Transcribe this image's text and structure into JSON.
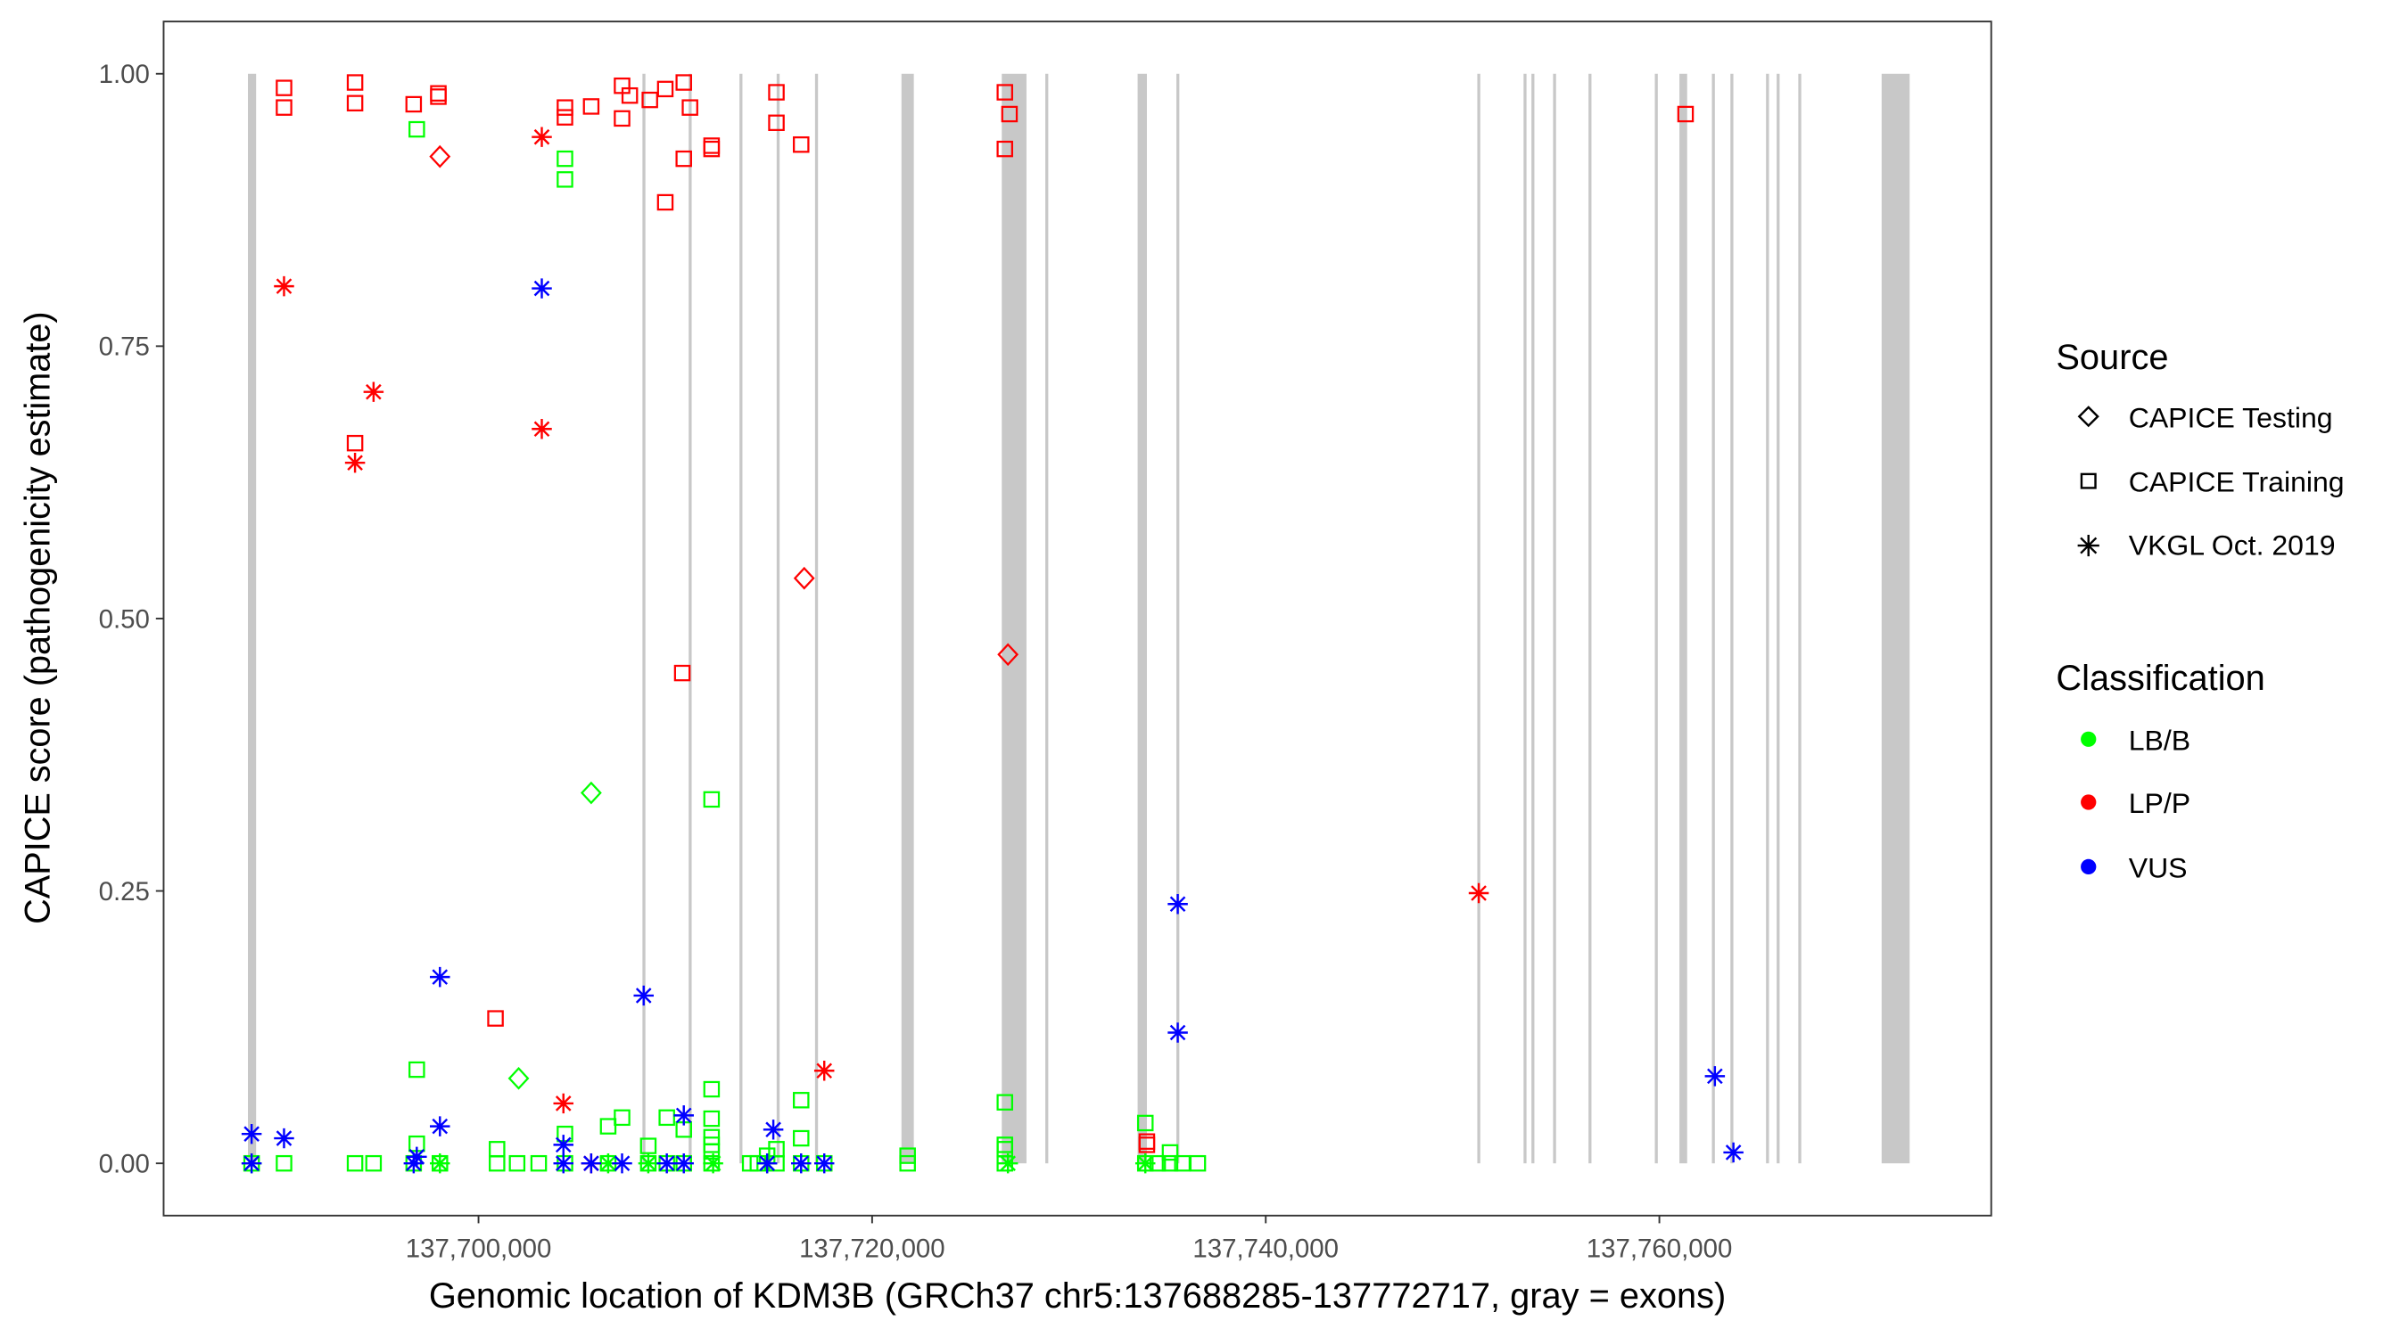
{
  "chart_data": {
    "type": "scatter",
    "xlabel": "Genomic location of KDM3B (GRCh37 chr5:137688285-137772717, gray = exons)",
    "ylabel": "CAPICE score (pathogenicity estimate)",
    "xlim": [
      137683700,
      137776500
    ],
    "ylim": [
      -0.047,
      1.05
    ],
    "x_ticks": [
      {
        "value": 137700000,
        "label": "137,700,000"
      },
      {
        "value": 137720000,
        "label": "137,720,000"
      },
      {
        "value": 137740000,
        "label": "137,740,000"
      },
      {
        "value": 137760000,
        "label": "137,760,000"
      }
    ],
    "y_ticks": [
      {
        "value": 0,
        "label": "0.00"
      },
      {
        "value": 0.25,
        "label": "0.25"
      },
      {
        "value": 0.5,
        "label": "0.50"
      },
      {
        "value": 0.75,
        "label": "0.75"
      },
      {
        "value": 1,
        "label": "1.00"
      }
    ],
    "grid": false,
    "exon_color": "#c8c8c8",
    "exons": [
      [
        137688285,
        137688700
      ],
      [
        137708330,
        137708480
      ],
      [
        137710680,
        137710830
      ],
      [
        137713260,
        137713410
      ],
      [
        137715150,
        137715300
      ],
      [
        137717100,
        137717250
      ],
      [
        137721490,
        137722118
      ],
      [
        137726588,
        137727843
      ],
      [
        137728800,
        137728950
      ],
      [
        137733490,
        137733961
      ],
      [
        137735460,
        137735610
      ],
      [
        137750750,
        137750900
      ],
      [
        137753100,
        137753250
      ],
      [
        137753500,
        137753650
      ],
      [
        137754600,
        137754750
      ],
      [
        137756400,
        137756550
      ],
      [
        137759770,
        137759920
      ],
      [
        137761020,
        137761412
      ],
      [
        137762670,
        137762820
      ],
      [
        137763610,
        137763760
      ],
      [
        137765420,
        137765570
      ],
      [
        137765960,
        137766110
      ],
      [
        137767060,
        137767210
      ],
      [
        137771294,
        137772717
      ]
    ],
    "legend": {
      "placement": "right",
      "source": {
        "title": "Source",
        "items": [
          {
            "key": "testing",
            "label": "CAPICE Testing",
            "shape": "diamond"
          },
          {
            "key": "training",
            "label": "CAPICE Training",
            "shape": "square"
          },
          {
            "key": "vkgl",
            "label": "VKGL Oct. 2019",
            "shape": "asterisk"
          }
        ]
      },
      "classification": {
        "title": "Classification",
        "items": [
          {
            "key": "LB/B",
            "label": "LB/B",
            "color": "#00ff00"
          },
          {
            "key": "LP/P",
            "label": "LP/P",
            "color": "#ff0000"
          },
          {
            "key": "VUS",
            "label": "VUS",
            "color": "#0000ff"
          }
        ]
      }
    },
    "points": [
      [
        137696863,
        0.949,
        "training",
        "LB/B"
      ],
      [
        137704392,
        0.922,
        "training",
        "LB/B"
      ],
      [
        137704392,
        0.903,
        "training",
        "LB/B"
      ],
      [
        137711843,
        0.334,
        "training",
        "LB/B"
      ],
      [
        137696863,
        0.086,
        "training",
        "LB/B"
      ],
      [
        137696863,
        0.018,
        "training",
        "LB/B"
      ],
      [
        137704392,
        0.027,
        "training",
        "LB/B"
      ],
      [
        137706588,
        0.034,
        "training",
        "LB/B"
      ],
      [
        137707294,
        0.042,
        "training",
        "LB/B"
      ],
      [
        137709568,
        0.042,
        "training",
        "LB/B"
      ],
      [
        137710431,
        0.031,
        "training",
        "LB/B"
      ],
      [
        137711843,
        0.068,
        "training",
        "LB/B"
      ],
      [
        137711843,
        0.041,
        "training",
        "LB/B"
      ],
      [
        137711843,
        0.024,
        "training",
        "LB/B"
      ],
      [
        137716392,
        0.058,
        "training",
        "LB/B"
      ],
      [
        137716392,
        0.023,
        "training",
        "LB/B"
      ],
      [
        137726745,
        0.056,
        "training",
        "LB/B"
      ],
      [
        137733882,
        0.037,
        "training",
        "LB/B"
      ],
      [
        137735137,
        0.01,
        "training",
        "LB/B"
      ],
      [
        137700941,
        0.013,
        "training",
        "LB/B"
      ],
      [
        137708627,
        0.016,
        "training",
        "LB/B"
      ],
      [
        137688471,
        0,
        "training",
        "LB/B"
      ],
      [
        137690118,
        0,
        "training",
        "LB/B"
      ],
      [
        137693726,
        0,
        "training",
        "LB/B"
      ],
      [
        137694667,
        0,
        "training",
        "LB/B"
      ],
      [
        137696706,
        0,
        "training",
        "LB/B"
      ],
      [
        137698039,
        0,
        "training",
        "LB/B"
      ],
      [
        137700941,
        0,
        "training",
        "LB/B"
      ],
      [
        137701961,
        0,
        "training",
        "LB/B"
      ],
      [
        137703059,
        0,
        "training",
        "LB/B"
      ],
      [
        137704392,
        0,
        "training",
        "LB/B"
      ],
      [
        137706588,
        0,
        "training",
        "LB/B"
      ],
      [
        137708627,
        0,
        "training",
        "LB/B"
      ],
      [
        137709568,
        0,
        "training",
        "LB/B"
      ],
      [
        137710431,
        0,
        "training",
        "LB/B"
      ],
      [
        137711843,
        0,
        "training",
        "LB/B"
      ],
      [
        137713804,
        0,
        "training",
        "LB/B"
      ],
      [
        137714196,
        0,
        "training",
        "LB/B"
      ],
      [
        137715137,
        0,
        "training",
        "LB/B"
      ],
      [
        137716392,
        0,
        "training",
        "LB/B"
      ],
      [
        137717568,
        0,
        "training",
        "LB/B"
      ],
      [
        137721804,
        0,
        "training",
        "LB/B"
      ],
      [
        137721804,
        0.007,
        "training",
        "LB/B"
      ],
      [
        137726745,
        0,
        "training",
        "LB/B"
      ],
      [
        137726745,
        0.013,
        "training",
        "LB/B"
      ],
      [
        137726745,
        0.017,
        "training",
        "LB/B"
      ],
      [
        137733882,
        0,
        "training",
        "LB/B"
      ],
      [
        137734509,
        0,
        "training",
        "LB/B"
      ],
      [
        137735137,
        0,
        "training",
        "LB/B"
      ],
      [
        137735764,
        0,
        "training",
        "LB/B"
      ],
      [
        137736548,
        0,
        "training",
        "LB/B"
      ],
      [
        137715137,
        0.013,
        "training",
        "LB/B"
      ],
      [
        137714666,
        0.007,
        "training",
        "LB/B"
      ],
      [
        137711843,
        0.017,
        "training",
        "LB/B"
      ],
      [
        137711843,
        0.011,
        "training",
        "LB/B"
      ],
      [
        137705725,
        0.34,
        "testing",
        "LB/B"
      ],
      [
        137702039,
        0.078,
        "testing",
        "LB/B"
      ],
      [
        137688471,
        0,
        "vkgl",
        "LB/B"
      ],
      [
        137698039,
        0,
        "vkgl",
        "LB/B"
      ],
      [
        137706588,
        0,
        "vkgl",
        "LB/B"
      ],
      [
        137708627,
        0,
        "vkgl",
        "LB/B"
      ],
      [
        137714666,
        0,
        "vkgl",
        "LB/B"
      ],
      [
        137726901,
        0,
        "vkgl",
        "LB/B"
      ],
      [
        137733882,
        0,
        "vkgl",
        "LB/B"
      ],
      [
        137711921,
        0,
        "vkgl",
        "LB/B"
      ],
      [
        137690118,
        0.987,
        "training",
        "LP/P"
      ],
      [
        137690118,
        0.969,
        "training",
        "LP/P"
      ],
      [
        137693726,
        0.992,
        "training",
        "LP/P"
      ],
      [
        137693726,
        0.973,
        "training",
        "LP/P"
      ],
      [
        137696706,
        0.972,
        "training",
        "LP/P"
      ],
      [
        137697961,
        0.982,
        "training",
        "LP/P"
      ],
      [
        137697961,
        0.979,
        "training",
        "LP/P"
      ],
      [
        137704392,
        0.969,
        "training",
        "LP/P"
      ],
      [
        137704392,
        0.96,
        "training",
        "LP/P"
      ],
      [
        137705725,
        0.97,
        "training",
        "LP/P"
      ],
      [
        137707294,
        0.989,
        "training",
        "LP/P"
      ],
      [
        137707294,
        0.959,
        "training",
        "LP/P"
      ],
      [
        137707686,
        0.98,
        "training",
        "LP/P"
      ],
      [
        137708706,
        0.976,
        "training",
        "LP/P"
      ],
      [
        137709490,
        0.986,
        "training",
        "LP/P"
      ],
      [
        137709490,
        0.882,
        "training",
        "LP/P"
      ],
      [
        137710431,
        0.992,
        "training",
        "LP/P"
      ],
      [
        137710745,
        0.969,
        "training",
        "LP/P"
      ],
      [
        137710431,
        0.922,
        "training",
        "LP/P"
      ],
      [
        137711843,
        0.934,
        "training",
        "LP/P"
      ],
      [
        137711843,
        0.931,
        "training",
        "LP/P"
      ],
      [
        137715137,
        0.983,
        "training",
        "LP/P"
      ],
      [
        137715137,
        0.955,
        "training",
        "LP/P"
      ],
      [
        137716392,
        0.935,
        "training",
        "LP/P"
      ],
      [
        137726745,
        0.983,
        "training",
        "LP/P"
      ],
      [
        137726980,
        0.963,
        "training",
        "LP/P"
      ],
      [
        137726745,
        0.931,
        "training",
        "LP/P"
      ],
      [
        137761332,
        0.963,
        "training",
        "LP/P"
      ],
      [
        137693726,
        0.661,
        "training",
        "LP/P"
      ],
      [
        137710353,
        0.45,
        "training",
        "LP/P"
      ],
      [
        137700863,
        0.133,
        "training",
        "LP/P"
      ],
      [
        137733960,
        0.02,
        "training",
        "LP/P"
      ],
      [
        137733960,
        0.017,
        "training",
        "LP/P"
      ],
      [
        137698039,
        0.924,
        "testing",
        "LP/P"
      ],
      [
        137716549,
        0.537,
        "testing",
        "LP/P"
      ],
      [
        137726901,
        0.467,
        "testing",
        "LP/P"
      ],
      [
        137690118,
        0.805,
        "vkgl",
        "LP/P"
      ],
      [
        137694667,
        0.708,
        "vkgl",
        "LP/P"
      ],
      [
        137693726,
        0.643,
        "vkgl",
        "LP/P"
      ],
      [
        137703216,
        0.942,
        "vkgl",
        "LP/P"
      ],
      [
        137703216,
        0.674,
        "vkgl",
        "LP/P"
      ],
      [
        137704314,
        0.055,
        "vkgl",
        "LP/P"
      ],
      [
        137717568,
        0.085,
        "vkgl",
        "LP/P"
      ],
      [
        137750823,
        0.248,
        "vkgl",
        "LP/P"
      ],
      [
        137705725,
        0,
        "vkgl",
        "LP/P"
      ],
      [
        137703216,
        0.803,
        "vkgl",
        "VUS"
      ],
      [
        137698039,
        0.171,
        "vkgl",
        "VUS"
      ],
      [
        137708392,
        0.154,
        "vkgl",
        "VUS"
      ],
      [
        137735529,
        0.238,
        "vkgl",
        "VUS"
      ],
      [
        137735529,
        0.12,
        "vkgl",
        "VUS"
      ],
      [
        137762822,
        0.08,
        "vkgl",
        "VUS"
      ],
      [
        137763764,
        0.01,
        "vkgl",
        "VUS"
      ],
      [
        137688471,
        0.027,
        "vkgl",
        "VUS"
      ],
      [
        137690118,
        0.023,
        "vkgl",
        "VUS"
      ],
      [
        137698039,
        0.034,
        "vkgl",
        "VUS"
      ],
      [
        137710431,
        0.044,
        "vkgl",
        "VUS"
      ],
      [
        137704314,
        0.017,
        "vkgl",
        "VUS"
      ],
      [
        137714980,
        0.031,
        "vkgl",
        "VUS"
      ],
      [
        137688471,
        0,
        "vkgl",
        "VUS"
      ],
      [
        137696706,
        0,
        "vkgl",
        "VUS"
      ],
      [
        137696863,
        0.006,
        "vkgl",
        "VUS"
      ],
      [
        137704314,
        0,
        "vkgl",
        "VUS"
      ],
      [
        137705725,
        0,
        "vkgl",
        "VUS"
      ],
      [
        137707294,
        0,
        "vkgl",
        "VUS"
      ],
      [
        137709568,
        0,
        "vkgl",
        "VUS"
      ],
      [
        137710431,
        0,
        "vkgl",
        "VUS"
      ],
      [
        137716392,
        0,
        "vkgl",
        "VUS"
      ],
      [
        137717568,
        0,
        "vkgl",
        "VUS"
      ],
      [
        137714666,
        0,
        "vkgl",
        "VUS"
      ]
    ]
  }
}
